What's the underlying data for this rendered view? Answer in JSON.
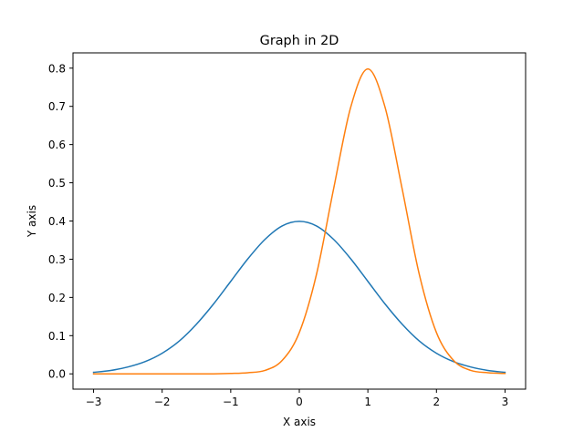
{
  "chart_data": {
    "type": "line",
    "title": "Graph in 2D",
    "xlabel": "X axis",
    "ylabel": "Y axis",
    "xlim": [
      -3.3,
      3.3
    ],
    "ylim": [
      -0.04,
      0.84
    ],
    "xticks": [
      -3,
      -2,
      -1,
      0,
      1,
      2,
      3
    ],
    "xtick_labels": [
      "−3",
      "−2",
      "−1",
      "0",
      "1",
      "2",
      "3"
    ],
    "yticks": [
      0.0,
      0.1,
      0.2,
      0.3,
      0.4,
      0.5,
      0.6,
      0.7,
      0.8
    ],
    "ytick_labels": [
      "0.0",
      "0.1",
      "0.2",
      "0.3",
      "0.4",
      "0.5",
      "0.6",
      "0.7",
      "0.8"
    ],
    "grid": false,
    "legend": "none",
    "x": [
      -3.0,
      -2.75,
      -2.5,
      -2.25,
      -2.0,
      -1.75,
      -1.5,
      -1.25,
      -1.0,
      -0.75,
      -0.5,
      -0.25,
      0.0,
      0.25,
      0.5,
      0.75,
      1.0,
      1.25,
      1.5,
      1.75,
      2.0,
      2.25,
      2.5,
      2.75,
      3.0
    ],
    "series": [
      {
        "color": "#1f77b4",
        "values": [
          0.004,
          0.009,
          0.018,
          0.032,
          0.054,
          0.086,
          0.13,
          0.183,
          0.242,
          0.301,
          0.352,
          0.387,
          0.399,
          0.387,
          0.352,
          0.301,
          0.242,
          0.183,
          0.13,
          0.086,
          0.054,
          0.032,
          0.018,
          0.009,
          0.004
        ]
      },
      {
        "color": "#ff7f0e",
        "values": [
          0.0,
          0.0,
          0.0,
          0.0,
          0.0,
          0.0,
          0.0,
          0.0,
          0.001,
          0.003,
          0.009,
          0.035,
          0.108,
          0.26,
          0.484,
          0.698,
          0.798,
          0.698,
          0.484,
          0.26,
          0.108,
          0.035,
          0.009,
          0.003,
          0.001
        ]
      }
    ]
  }
}
